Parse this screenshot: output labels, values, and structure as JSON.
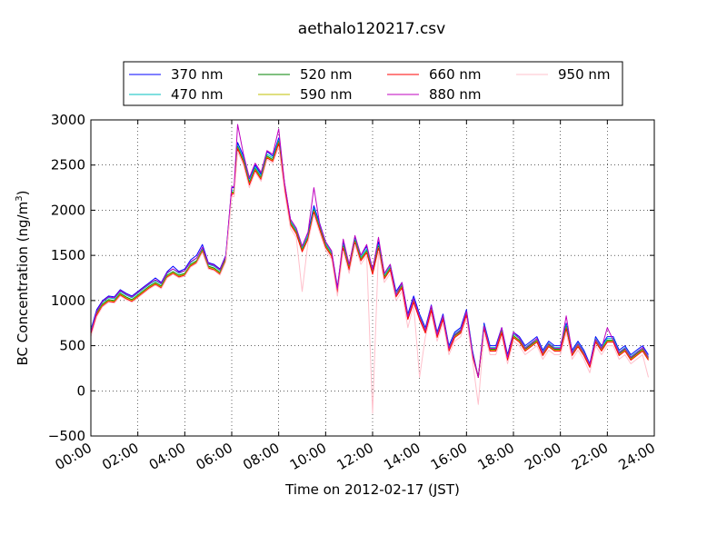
{
  "chart_data": {
    "type": "line",
    "title": "aethalo120217.csv",
    "xlabel": "Time on 2012-02-17 (JST)",
    "ylabel_main": "BC Concentration (ng/m",
    "ylabel_sup": "3",
    "ylabel_close": ")",
    "xlim": [
      0,
      24
    ],
    "ylim": [
      -500,
      3000
    ],
    "xticks": [
      {
        "v": 0,
        "label": "00:00"
      },
      {
        "v": 2,
        "label": "02:00"
      },
      {
        "v": 4,
        "label": "04:00"
      },
      {
        "v": 6,
        "label": "06:00"
      },
      {
        "v": 8,
        "label": "08:00"
      },
      {
        "v": 10,
        "label": "10:00"
      },
      {
        "v": 12,
        "label": "12:00"
      },
      {
        "v": 14,
        "label": "14:00"
      },
      {
        "v": 16,
        "label": "16:00"
      },
      {
        "v": 18,
        "label": "18:00"
      },
      {
        "v": 20,
        "label": "20:00"
      },
      {
        "v": 22,
        "label": "22:00"
      },
      {
        "v": 24,
        "label": "24:00"
      }
    ],
    "yticks": [
      {
        "v": -500,
        "label": "−500"
      },
      {
        "v": 0,
        "label": "0"
      },
      {
        "v": 500,
        "label": "500"
      },
      {
        "v": 1000,
        "label": "1000"
      },
      {
        "v": 1500,
        "label": "1500"
      },
      {
        "v": 2000,
        "label": "2000"
      },
      {
        "v": 2500,
        "label": "2500"
      },
      {
        "v": 3000,
        "label": "3000"
      }
    ],
    "grid": true,
    "legend_position": "top, above plot (4 columns)",
    "x": [
      0.0,
      0.25,
      0.5,
      0.75,
      1.0,
      1.25,
      1.5,
      1.75,
      2.0,
      2.25,
      2.5,
      2.75,
      3.0,
      3.25,
      3.5,
      3.75,
      4.0,
      4.25,
      4.5,
      4.75,
      5.0,
      5.25,
      5.5,
      5.75,
      6.0,
      6.1,
      6.25,
      6.5,
      6.75,
      7.0,
      7.25,
      7.5,
      7.75,
      8.0,
      8.25,
      8.5,
      8.75,
      9.0,
      9.25,
      9.5,
      9.75,
      10.0,
      10.25,
      10.5,
      10.75,
      11.0,
      11.25,
      11.5,
      11.75,
      12.0,
      12.25,
      12.5,
      12.75,
      13.0,
      13.25,
      13.5,
      13.75,
      14.0,
      14.25,
      14.5,
      14.75,
      15.0,
      15.25,
      15.5,
      15.75,
      16.0,
      16.25,
      16.5,
      16.75,
      17.0,
      17.25,
      17.5,
      17.75,
      18.0,
      18.25,
      18.5,
      18.75,
      19.0,
      19.25,
      19.5,
      19.75,
      20.0,
      20.25,
      20.5,
      20.75,
      21.0,
      21.25,
      21.5,
      21.75,
      22.0,
      22.25,
      22.5,
      22.75,
      23.0,
      23.25,
      23.5,
      23.75
    ],
    "series": [
      {
        "name": "370 nm",
        "color": "#0000ff",
        "values": [
          680,
          900,
          1000,
          1050,
          1040,
          1120,
          1080,
          1050,
          1100,
          1150,
          1200,
          1250,
          1200,
          1320,
          1380,
          1320,
          1350,
          1450,
          1500,
          1620,
          1420,
          1400,
          1350,
          1500,
          2250,
          2250,
          2750,
          2600,
          2350,
          2500,
          2400,
          2650,
          2600,
          2800,
          2300,
          1900,
          1800,
          1600,
          1750,
          2050,
          1850,
          1650,
          1550,
          1150,
          1650,
          1400,
          1700,
          1500,
          1600,
          1350,
          1650,
          1300,
          1400,
          1100,
          1200,
          850,
          1050,
          850,
          700,
          950,
          650,
          850,
          500,
          650,
          700,
          900,
          450,
          150,
          750,
          500,
          500,
          700,
          400,
          650,
          600,
          500,
          550,
          600,
          450,
          550,
          500,
          500,
          750,
          450,
          550,
          450,
          300,
          600,
          500,
          600,
          600,
          450,
          500,
          400,
          450,
          500,
          400
        ]
      },
      {
        "name": "470 nm",
        "color": "#00bfbf",
        "values": [
          670,
          880,
          980,
          1030,
          1020,
          1100,
          1060,
          1030,
          1080,
          1130,
          1180,
          1220,
          1180,
          1300,
          1350,
          1300,
          1330,
          1420,
          1470,
          1580,
          1400,
          1380,
          1330,
          1480,
          2220,
          2220,
          2720,
          2570,
          2320,
          2480,
          2380,
          2620,
          2580,
          2780,
          2280,
          1880,
          1780,
          1580,
          1720,
          2020,
          1820,
          1630,
          1530,
          1130,
          1620,
          1380,
          1680,
          1480,
          1570,
          1330,
          1620,
          1280,
          1380,
          1080,
          1180,
          830,
          1020,
          830,
          680,
          930,
          630,
          830,
          480,
          630,
          680,
          880,
          430,
          150,
          730,
          480,
          480,
          680,
          380,
          630,
          580,
          480,
          530,
          580,
          430,
          530,
          480,
          480,
          730,
          430,
          530,
          430,
          290,
          580,
          480,
          580,
          580,
          430,
          480,
          380,
          430,
          480,
          380
        ]
      },
      {
        "name": "520 nm",
        "color": "#008000",
        "values": [
          650,
          860,
          960,
          1010,
          1000,
          1080,
          1040,
          1010,
          1060,
          1110,
          1160,
          1200,
          1160,
          1280,
          1320,
          1280,
          1300,
          1400,
          1440,
          1560,
          1380,
          1360,
          1310,
          1460,
          2200,
          2200,
          2700,
          2550,
          2300,
          2460,
          2360,
          2600,
          2560,
          2760,
          2260,
          1860,
          1760,
          1560,
          1700,
          2000,
          1800,
          1610,
          1510,
          1110,
          1600,
          1360,
          1660,
          1460,
          1550,
          1310,
          1600,
          1260,
          1360,
          1060,
          1160,
          810,
          1000,
          810,
          660,
          910,
          610,
          810,
          460,
          610,
          660,
          860,
          410,
          150,
          710,
          460,
          460,
          660,
          360,
          610,
          560,
          460,
          510,
          560,
          410,
          510,
          460,
          460,
          710,
          410,
          510,
          410,
          280,
          560,
          460,
          560,
          560,
          410,
          460,
          360,
          410,
          460,
          360
        ]
      },
      {
        "name": "590 nm",
        "color": "#bfbf00",
        "values": [
          640,
          850,
          950,
          1000,
          990,
          1070,
          1030,
          1000,
          1050,
          1100,
          1150,
          1190,
          1150,
          1270,
          1310,
          1270,
          1290,
          1390,
          1430,
          1550,
          1370,
          1350,
          1300,
          1450,
          2190,
          2190,
          2690,
          2540,
          2290,
          2450,
          2350,
          2590,
          2550,
          2750,
          2250,
          1850,
          1750,
          1550,
          1690,
          1990,
          1790,
          1600,
          1500,
          1100,
          1590,
          1350,
          1650,
          1450,
          1540,
          1300,
          1590,
          1250,
          1350,
          1050,
          1150,
          800,
          990,
          800,
          650,
          900,
          600,
          800,
          450,
          600,
          650,
          850,
          400,
          150,
          700,
          450,
          450,
          650,
          350,
          600,
          550,
          450,
          500,
          550,
          400,
          500,
          450,
          450,
          700,
          400,
          500,
          400,
          270,
          550,
          450,
          550,
          550,
          400,
          450,
          350,
          400,
          450,
          350
        ]
      },
      {
        "name": "660 nm",
        "color": "#ff0000",
        "values": [
          630,
          840,
          940,
          990,
          980,
          1060,
          1020,
          990,
          1040,
          1090,
          1140,
          1180,
          1140,
          1260,
          1300,
          1260,
          1280,
          1380,
          1420,
          1540,
          1360,
          1340,
          1290,
          1440,
          2180,
          2180,
          2680,
          2530,
          2280,
          2440,
          2340,
          2580,
          2540,
          2740,
          2240,
          1840,
          1740,
          1540,
          1680,
          1980,
          1780,
          1590,
          1490,
          1090,
          1580,
          1340,
          1640,
          1440,
          1530,
          1290,
          1580,
          1240,
          1340,
          1040,
          1140,
          790,
          980,
          790,
          640,
          890,
          590,
          790,
          440,
          590,
          640,
          840,
          390,
          150,
          690,
          440,
          440,
          640,
          340,
          590,
          540,
          440,
          490,
          540,
          390,
          490,
          440,
          440,
          690,
          390,
          490,
          390,
          260,
          540,
          440,
          540,
          540,
          390,
          440,
          340,
          390,
          440,
          340
        ]
      },
      {
        "name": "880 nm",
        "color": "#bf00bf",
        "values": [
          650,
          880,
          990,
          1040,
          1030,
          1110,
          1070,
          1040,
          1090,
          1140,
          1190,
          1230,
          1190,
          1310,
          1350,
          1310,
          1330,
          1430,
          1470,
          1590,
          1410,
          1390,
          1340,
          1490,
          2260,
          2260,
          2950,
          2620,
          2360,
          2520,
          2420,
          2660,
          2620,
          2900,
          2300,
          1900,
          1800,
          1600,
          1760,
          2250,
          1840,
          1650,
          1550,
          1130,
          1680,
          1400,
          1720,
          1500,
          1620,
          1340,
          1700,
          1300,
          1400,
          1060,
          1200,
          820,
          1020,
          820,
          670,
          940,
          620,
          830,
          470,
          620,
          670,
          880,
          420,
          150,
          720,
          470,
          470,
          700,
          370,
          650,
          580,
          470,
          520,
          580,
          420,
          520,
          470,
          470,
          830,
          420,
          520,
          420,
          290,
          570,
          470,
          700,
          560,
          420,
          470,
          370,
          420,
          480,
          370
        ]
      },
      {
        "name": "950 nm",
        "color": "#ffc0cb",
        "values": [
          600,
          820,
          930,
          980,
          970,
          1050,
          1010,
          980,
          1030,
          1080,
          1130,
          1170,
          1130,
          1250,
          1290,
          1250,
          1270,
          1370,
          1410,
          1530,
          1350,
          1330,
          1280,
          1430,
          2150,
          2150,
          2650,
          2500,
          2250,
          2420,
          2320,
          2560,
          2520,
          2700,
          2200,
          1800,
          1700,
          1100,
          1650,
          1950,
          1750,
          1560,
          1460,
          1050,
          1550,
          1300,
          1620,
          1400,
          1500,
          -250,
          1550,
          1200,
          1300,
          1000,
          1100,
          700,
          950,
          150,
          600,
          850,
          550,
          750,
          400,
          550,
          600,
          800,
          350,
          -150,
          650,
          400,
          400,
          600,
          300,
          550,
          500,
          400,
          450,
          500,
          350,
          450,
          400,
          400,
          650,
          350,
          450,
          350,
          200,
          500,
          400,
          500,
          500,
          350,
          400,
          300,
          350,
          400,
          150
        ]
      }
    ]
  }
}
